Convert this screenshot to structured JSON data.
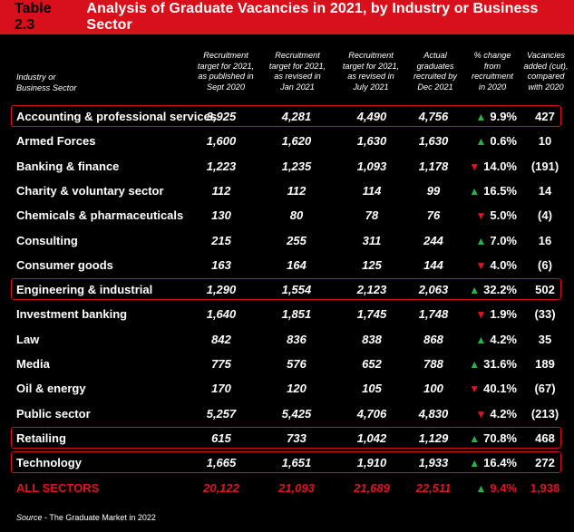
{
  "title": {
    "table_number": "Table 2.3",
    "text": "Analysis of Graduate Vacancies in 2021, by Industry or Business Sector"
  },
  "headers": {
    "sector": [
      "Industry or",
      "Business Sector"
    ],
    "col2": [
      "Recruitment",
      "target for 2021,",
      "as published in",
      "Sept 2020"
    ],
    "col3": [
      "Recruitment",
      "target for 2021,",
      "as revised in",
      "Jan 2021"
    ],
    "col4": [
      "Recruitment",
      "target for 2021,",
      "as revised in",
      "July 2021"
    ],
    "col5": [
      "Actual",
      "graduates",
      "recruited by",
      "Dec 2021"
    ],
    "col6": [
      "% change",
      "from",
      "recruitment",
      "in 2020"
    ],
    "col7": [
      "Vacancies",
      "added (cut),",
      "compared",
      "with 2020"
    ]
  },
  "rows": [
    {
      "name": "Accounting & professional services",
      "v1": "3,925",
      "v2": "4,281",
      "v3": "4,490",
      "v4": "4,756",
      "dir": "up",
      "pct": "9.9%",
      "added": "427",
      "highlight": true
    },
    {
      "name": "Armed Forces",
      "v1": "1,600",
      "v2": "1,620",
      "v3": "1,630",
      "v4": "1,630",
      "dir": "up",
      "pct": "0.6%",
      "added": "10",
      "highlight": false
    },
    {
      "name": "Banking & finance",
      "v1": "1,223",
      "v2": "1,235",
      "v3": "1,093",
      "v4": "1,178",
      "dir": "down",
      "pct": "14.0%",
      "added": "(191)",
      "highlight": false
    },
    {
      "name": "Charity & voluntary sector",
      "v1": "112",
      "v2": "112",
      "v3": "114",
      "v4": "99",
      "dir": "up",
      "pct": "16.5%",
      "added": "14",
      "highlight": false
    },
    {
      "name": "Chemicals & pharmaceuticals",
      "v1": "130",
      "v2": "80",
      "v3": "78",
      "v4": "76",
      "dir": "down",
      "pct": "5.0%",
      "added": "(4)",
      "highlight": false
    },
    {
      "name": "Consulting",
      "v1": "215",
      "v2": "255",
      "v3": "311",
      "v4": "244",
      "dir": "up",
      "pct": "7.0%",
      "added": "16",
      "highlight": false
    },
    {
      "name": "Consumer goods",
      "v1": "163",
      "v2": "164",
      "v3": "125",
      "v4": "144",
      "dir": "down",
      "pct": "4.0%",
      "added": "(6)",
      "highlight": false
    },
    {
      "name": "Engineering & industrial",
      "v1": "1,290",
      "v2": "1,554",
      "v3": "2,123",
      "v4": "2,063",
      "dir": "up",
      "pct": "32.2%",
      "added": "502",
      "highlight": true
    },
    {
      "name": "Investment banking",
      "v1": "1,640",
      "v2": "1,851",
      "v3": "1,745",
      "v4": "1,748",
      "dir": "down",
      "pct": "1.9%",
      "added": "(33)",
      "highlight": false
    },
    {
      "name": "Law",
      "v1": "842",
      "v2": "836",
      "v3": "838",
      "v4": "868",
      "dir": "up",
      "pct": "4.2%",
      "added": "35",
      "highlight": false
    },
    {
      "name": "Media",
      "v1": "775",
      "v2": "576",
      "v3": "652",
      "v4": "788",
      "dir": "up",
      "pct": "31.6%",
      "added": "189",
      "highlight": false
    },
    {
      "name": "Oil & energy",
      "v1": "170",
      "v2": "120",
      "v3": "105",
      "v4": "100",
      "dir": "down",
      "pct": "40.1%",
      "added": "(67)",
      "highlight": false
    },
    {
      "name": "Public sector",
      "v1": "5,257",
      "v2": "5,425",
      "v3": "4,706",
      "v4": "4,830",
      "dir": "down",
      "pct": "4.2%",
      "added": "(213)",
      "highlight": false
    },
    {
      "name": "Retailing",
      "v1": "615",
      "v2": "733",
      "v3": "1,042",
      "v4": "1,129",
      "dir": "up",
      "pct": "70.8%",
      "added": "468",
      "highlight": true
    },
    {
      "name": "Technology",
      "v1": "1,665",
      "v2": "1,651",
      "v3": "1,910",
      "v4": "1,933",
      "dir": "up",
      "pct": "16.4%",
      "added": "272",
      "highlight": true
    }
  ],
  "total": {
    "name": "ALL SECTORS",
    "v1": "20,122",
    "v2": "21,093",
    "v3": "21,689",
    "v4": "22,511",
    "dir": "up",
    "pct": "9.4%",
    "added": "1,938"
  },
  "source": {
    "label": "Source",
    "text": " - The Graduate Market in 2022"
  },
  "colors": {
    "accent": "#d7101b",
    "up": "#29b24a",
    "down": "#e3141f",
    "background": "#000000"
  },
  "icons": {
    "up": "up-triangle-icon",
    "down": "down-triangle-icon"
  }
}
